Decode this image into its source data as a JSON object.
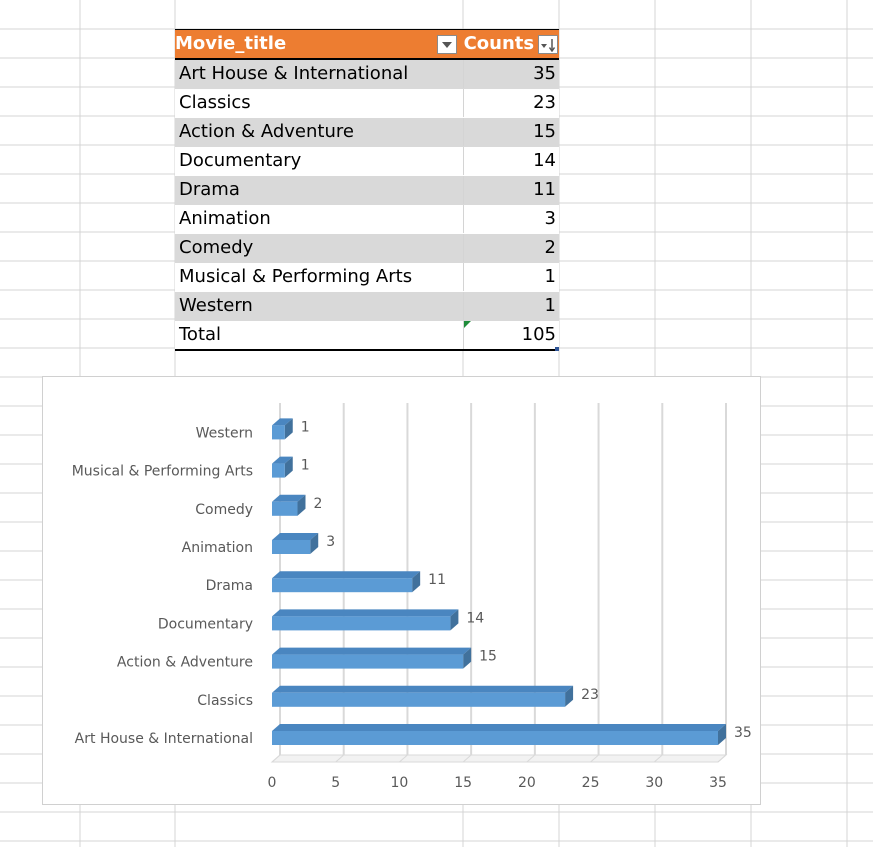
{
  "table": {
    "headers": {
      "title": "Movie_title",
      "counts": "Counts"
    },
    "header_color": "#ed7d31",
    "rows": [
      {
        "title": "Art House & International",
        "count": "35"
      },
      {
        "title": "Classics",
        "count": "23"
      },
      {
        "title": "Action & Adventure",
        "count": "15"
      },
      {
        "title": "Documentary",
        "count": "14"
      },
      {
        "title": "Drama",
        "count": "11"
      },
      {
        "title": "Animation",
        "count": "3"
      },
      {
        "title": "Comedy",
        "count": "2"
      },
      {
        "title": "Musical & Performing Arts",
        "count": "1"
      },
      {
        "title": "Western",
        "count": "1"
      }
    ],
    "total": {
      "label": "Total",
      "value": "105"
    }
  },
  "chart_data": {
    "type": "bar",
    "orientation": "horizontal",
    "style": "3d",
    "categories": [
      "Art House & International",
      "Classics",
      "Action & Adventure",
      "Documentary",
      "Drama",
      "Animation",
      "Comedy",
      "Musical & Performing Arts",
      "Western"
    ],
    "values": [
      35,
      23,
      15,
      14,
      11,
      3,
      2,
      1,
      1
    ],
    "data_labels": true,
    "xlim": [
      0,
      35
    ],
    "x_ticks": [
      0,
      5,
      10,
      15,
      20,
      25,
      30,
      35
    ],
    "grid": "vertical",
    "bar_color": "#5b9bd5",
    "bar_dark_color": "#41719c",
    "title": "",
    "xlabel": "",
    "ylabel": ""
  }
}
